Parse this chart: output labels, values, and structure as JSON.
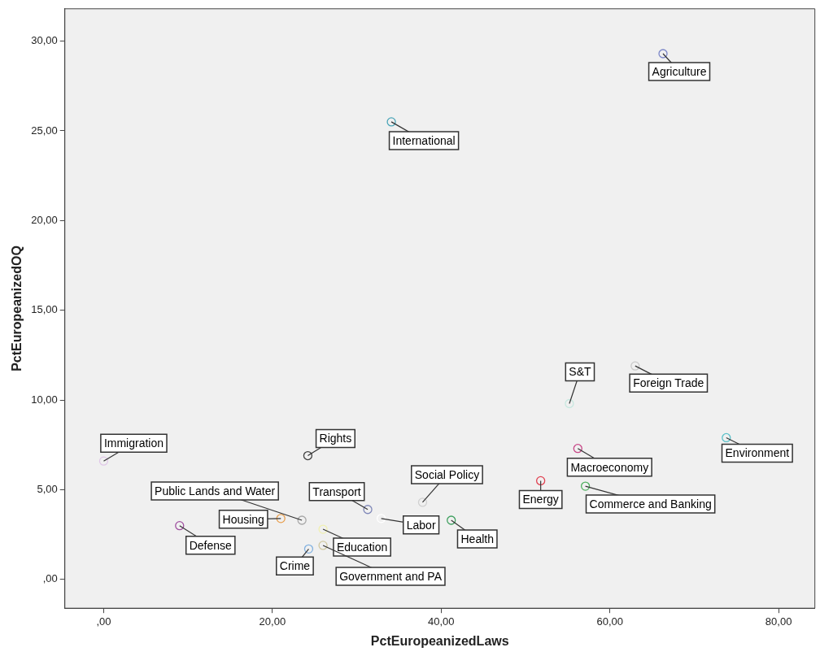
{
  "chart_data": {
    "type": "scatter",
    "xlabel": "PctEuropeanizedLaws",
    "ylabel": "PctEuropeanizedOQ",
    "x": [
      66.3,
      34.1,
      55.2,
      63.0,
      73.8,
      56.2,
      51.8,
      57.1,
      0.0,
      24.2,
      31.3,
      37.8,
      32.9,
      41.2,
      23.5,
      21.0,
      9.0,
      26.0,
      24.3,
      26.0
    ],
    "values": [
      29.3,
      25.5,
      9.8,
      11.9,
      7.9,
      7.3,
      5.5,
      5.2,
      6.6,
      6.9,
      3.9,
      4.3,
      3.4,
      3.3,
      3.3,
      3.4,
      3.0,
      2.8,
      1.7,
      1.9
    ],
    "colors": [
      "#7b86c8",
      "#4aa5b8",
      "#c8e8e0",
      "#c8c8c8",
      "#5cc0c8",
      "#c84888",
      "#e04050",
      "#50b060",
      "#e0c8e8",
      "#404040",
      "#8088b8",
      "#d0d0d0",
      "#ffffff",
      "#40a060",
      "#a8a8a8",
      "#e8a050",
      "#a050a0",
      "#f0f0b0",
      "#80b0e0",
      "#d0c8a0"
    ],
    "marker": "circle",
    "legend": false,
    "grid": false,
    "xlim": [
      -4.6,
      84.3
    ],
    "xticks": [
      {
        "value": 0,
        "label": ",00"
      },
      {
        "value": 20,
        "label": "20,00"
      },
      {
        "value": 40,
        "label": "40,00"
      },
      {
        "value": 60,
        "label": "60,00"
      },
      {
        "value": 80,
        "label": "80,00"
      }
    ],
    "ylim": [
      -1.6,
      31.8
    ],
    "yticks": [
      {
        "value": 0,
        "label": ",00"
      },
      {
        "value": 5,
        "label": "5,00"
      },
      {
        "value": 10,
        "label": "10,00"
      },
      {
        "value": 15,
        "label": "15,00"
      },
      {
        "value": 20,
        "label": "20,00"
      },
      {
        "value": 25,
        "label": "25,00"
      },
      {
        "value": 30,
        "label": "30,00"
      }
    ],
    "annotations": [
      {
        "text": "Agriculture",
        "x": 66.3,
        "y": 29.3
      },
      {
        "text": "International",
        "x": 34.1,
        "y": 25.5
      },
      {
        "text": "S&T",
        "x": 55.2,
        "y": 9.8
      },
      {
        "text": "Foreign Trade",
        "x": 63.0,
        "y": 11.9
      },
      {
        "text": "Environment",
        "x": 73.8,
        "y": 7.9
      },
      {
        "text": "Macroeconomy",
        "x": 56.2,
        "y": 7.3
      },
      {
        "text": "Energy",
        "x": 51.8,
        "y": 5.5
      },
      {
        "text": "Commerce and Banking",
        "x": 57.1,
        "y": 5.2
      },
      {
        "text": "Immigration",
        "x": 0.0,
        "y": 6.6
      },
      {
        "text": "Rights",
        "x": 24.2,
        "y": 6.9
      },
      {
        "text": "Transport",
        "x": 31.3,
        "y": 3.9
      },
      {
        "text": "Social Policy",
        "x": 37.8,
        "y": 4.3
      },
      {
        "text": "Labor",
        "x": 32.9,
        "y": 3.4
      },
      {
        "text": "Health",
        "x": 41.2,
        "y": 3.3
      },
      {
        "text": "Public Lands and Water",
        "x": 23.5,
        "y": 3.3
      },
      {
        "text": "Housing",
        "x": 21.0,
        "y": 3.4
      },
      {
        "text": "Defense",
        "x": 9.0,
        "y": 3.0
      },
      {
        "text": "Education",
        "x": 26.0,
        "y": 2.8
      },
      {
        "text": "Crime",
        "x": 24.3,
        "y": 1.7
      },
      {
        "text": "Government and PA",
        "x": 26.0,
        "y": 1.9
      }
    ]
  }
}
